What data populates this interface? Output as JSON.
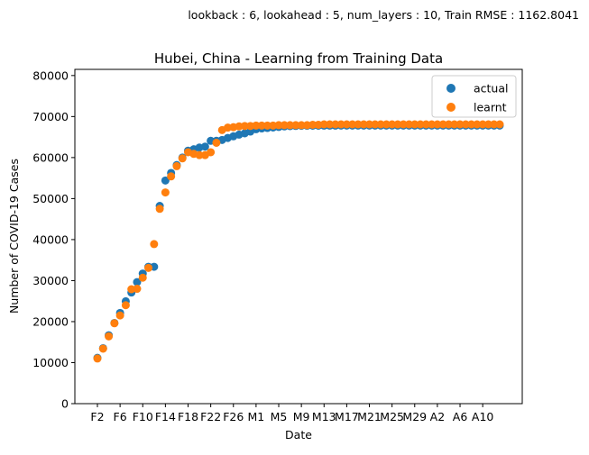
{
  "header": {
    "run_info": "lookback : 6, lookahead : 5, num_layers : 10, Train RMSE : 1162.8041"
  },
  "chart_data": {
    "type": "scatter",
    "title": "Hubei, China - Learning from Training Data",
    "xlabel": "Date",
    "ylabel": "Number of COVID-19 Cases",
    "ylim": [
      0,
      81500
    ],
    "yticks": [
      0,
      10000,
      20000,
      30000,
      40000,
      50000,
      60000,
      70000,
      80000
    ],
    "x_tick_labels": [
      "F2",
      "F6",
      "F10",
      "F14",
      "F18",
      "F22",
      "F26",
      "M1",
      "M5",
      "M9",
      "M13",
      "M17",
      "M21",
      "M25",
      "M29",
      "A2",
      "A6",
      "A10"
    ],
    "x_tick_index_start": 0,
    "x_tick_every": 4,
    "legend_position": "top-right",
    "grid": false,
    "series": [
      {
        "name": "actual",
        "color": "#1f77b4",
        "values": [
          11177,
          13522,
          16678,
          19665,
          22112,
          24953,
          27100,
          29631,
          31728,
          33366,
          33366,
          48206,
          54406,
          56249,
          58182,
          59989,
          61682,
          62031,
          62442,
          62662,
          64081,
          64084,
          64287,
          64786,
          65187,
          65596,
          65914,
          66337,
          66907,
          67103,
          67217,
          67332,
          67466,
          67592,
          67666,
          67707,
          67743,
          67760,
          67773,
          67781,
          67786,
          67790,
          67794,
          67798,
          67799,
          67800,
          67800,
          67801,
          67801,
          67801,
          67801,
          67801,
          67801,
          67802,
          67802,
          67802,
          67802,
          67803,
          67803,
          67803,
          67803,
          67803,
          67803,
          67803,
          67803,
          67803,
          67803,
          67803,
          67803,
          67803,
          67803,
          67803
        ]
      },
      {
        "name": "learnt",
        "color": "#ff7f0e",
        "values": [
          11000,
          13400,
          16400,
          19600,
          21500,
          24000,
          27900,
          28000,
          30700,
          33100,
          38900,
          47500,
          51500,
          55400,
          57900,
          59800,
          61300,
          60900,
          60600,
          60600,
          61300,
          63600,
          66700,
          67300,
          67400,
          67600,
          67700,
          67700,
          67800,
          67800,
          67800,
          67800,
          67900,
          67900,
          67900,
          67900,
          67900,
          67900,
          68000,
          68000,
          68100,
          68100,
          68100,
          68100,
          68100,
          68100,
          68100,
          68100,
          68100,
          68100,
          68100,
          68100,
          68100,
          68100,
          68100,
          68100,
          68100,
          68100,
          68100,
          68100,
          68100,
          68100,
          68100,
          68100,
          68100,
          68100,
          68100,
          68100,
          68100,
          68100,
          68100,
          68100
        ]
      }
    ]
  }
}
